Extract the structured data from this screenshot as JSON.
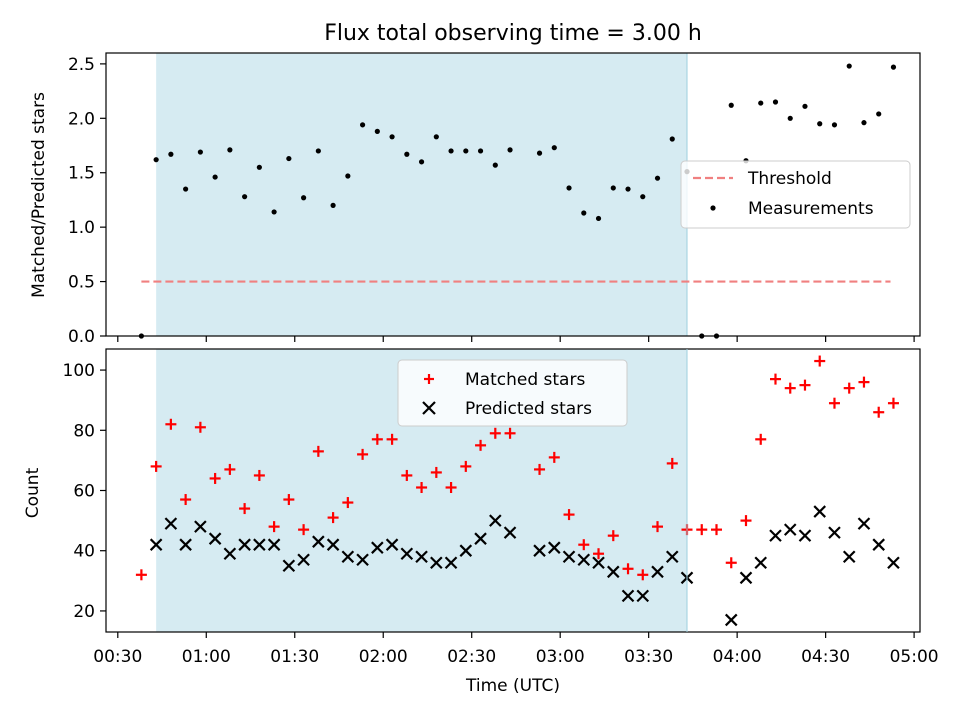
{
  "chart_data": [
    {
      "type": "scatter",
      "title": "Flux total observing time = 3.00 h",
      "ylabel": "Matched/Predicted stars",
      "xlabel": "",
      "ylim": [
        0,
        2.6
      ],
      "xlim": [
        "00:26",
        "05:02"
      ],
      "yticks": [
        0.0,
        0.5,
        1.0,
        1.5,
        2.0,
        2.5
      ],
      "ytick_labels": [
        "0.0",
        "0.5",
        "1.0",
        "1.5",
        "2.0",
        "2.5"
      ],
      "shaded_span": [
        "00:43",
        "03:43"
      ],
      "shaded_color": "#add8e6",
      "legend_position": "center-right",
      "threshold": {
        "name": "Threshold",
        "value": 0.5,
        "x_range": [
          "00:38",
          "04:52"
        ],
        "color": "#f08080"
      },
      "series": [
        {
          "name": "Measurements",
          "color": "#000000",
          "x": [
            "00:38",
            "00:43",
            "00:48",
            "00:53",
            "00:58",
            "01:03",
            "01:08",
            "01:13",
            "01:18",
            "01:23",
            "01:28",
            "01:33",
            "01:38",
            "01:43",
            "01:48",
            "01:53",
            "01:58",
            "02:03",
            "02:08",
            "02:13",
            "02:18",
            "02:23",
            "02:28",
            "02:33",
            "02:38",
            "02:43",
            "02:53",
            "02:58",
            "03:03",
            "03:08",
            "03:13",
            "03:18",
            "03:23",
            "03:28",
            "03:33",
            "03:38",
            "03:43",
            "03:48",
            "03:53",
            "03:58",
            "04:03",
            "04:08",
            "04:13",
            "04:18",
            "04:23",
            "04:28",
            "04:33",
            "04:38",
            "04:43",
            "04:48",
            "04:53"
          ],
          "y": [
            0.0,
            1.62,
            1.67,
            1.35,
            1.69,
            1.46,
            1.71,
            1.28,
            1.55,
            1.14,
            1.63,
            1.27,
            1.7,
            1.2,
            1.47,
            1.94,
            1.88,
            1.83,
            1.67,
            1.6,
            1.83,
            1.7,
            1.7,
            1.7,
            1.57,
            1.71,
            1.68,
            1.73,
            1.36,
            1.13,
            1.08,
            1.36,
            1.35,
            1.28,
            1.45,
            1.81,
            1.51,
            0.0,
            0.0,
            2.12,
            1.61,
            2.14,
            2.15,
            2.0,
            2.11,
            1.95,
            1.94,
            2.48,
            1.96,
            2.04,
            2.47
          ]
        }
      ]
    },
    {
      "type": "scatter",
      "title": "",
      "xlabel": "Time (UTC)",
      "ylabel": "Count",
      "ylim": [
        13,
        107
      ],
      "xlim": [
        "00:26",
        "05:02"
      ],
      "yticks": [
        20,
        40,
        60,
        80,
        100
      ],
      "ytick_labels": [
        "20",
        "40",
        "60",
        "80",
        "100"
      ],
      "xticks": [
        "00:30",
        "01:00",
        "01:30",
        "02:00",
        "02:30",
        "03:00",
        "03:30",
        "04:00",
        "04:30",
        "05:00"
      ],
      "shaded_span": [
        "00:43",
        "03:43"
      ],
      "shaded_color": "#add8e6",
      "legend_position": "top-center",
      "series": [
        {
          "name": "Matched stars",
          "marker": "+",
          "color": "#ff0000",
          "x": [
            "00:38",
            "00:43",
            "00:48",
            "00:53",
            "00:58",
            "01:03",
            "01:08",
            "01:13",
            "01:18",
            "01:23",
            "01:28",
            "01:33",
            "01:38",
            "01:43",
            "01:48",
            "01:53",
            "01:58",
            "02:03",
            "02:08",
            "02:13",
            "02:18",
            "02:23",
            "02:28",
            "02:33",
            "02:38",
            "02:43",
            "02:53",
            "02:58",
            "03:03",
            "03:08",
            "03:13",
            "03:18",
            "03:23",
            "03:28",
            "03:33",
            "03:38",
            "03:43",
            "03:48",
            "03:53",
            "03:58",
            "04:03",
            "04:08",
            "04:13",
            "04:18",
            "04:23",
            "04:28",
            "04:33",
            "04:38",
            "04:43",
            "04:48",
            "04:53"
          ],
          "y": [
            32,
            68,
            82,
            57,
            81,
            64,
            67,
            54,
            65,
            48,
            57,
            47,
            73,
            51,
            56,
            72,
            77,
            77,
            65,
            61,
            66,
            61,
            68,
            75,
            79,
            79,
            67,
            71,
            52,
            42,
            39,
            45,
            34,
            32,
            48,
            69,
            47,
            47,
            47,
            36,
            50,
            77,
            97,
            94,
            95,
            103,
            89,
            94,
            96,
            86,
            89
          ]
        },
        {
          "name": "Predicted stars",
          "marker": "x",
          "color": "#000000",
          "x": [
            "00:43",
            "00:48",
            "00:53",
            "00:58",
            "01:03",
            "01:08",
            "01:13",
            "01:18",
            "01:23",
            "01:28",
            "01:33",
            "01:38",
            "01:43",
            "01:48",
            "01:53",
            "01:58",
            "02:03",
            "02:08",
            "02:13",
            "02:18",
            "02:23",
            "02:28",
            "02:33",
            "02:38",
            "02:43",
            "02:53",
            "02:58",
            "03:03",
            "03:08",
            "03:13",
            "03:18",
            "03:23",
            "03:28",
            "03:33",
            "03:38",
            "03:43",
            "03:58",
            "04:03",
            "04:08",
            "04:13",
            "04:18",
            "04:23",
            "04:28",
            "04:33",
            "04:38",
            "04:43",
            "04:48",
            "04:53"
          ],
          "y": [
            42,
            49,
            42,
            48,
            44,
            39,
            42,
            42,
            42,
            35,
            37,
            43,
            42,
            38,
            37,
            41,
            42,
            39,
            38,
            36,
            36,
            40,
            44,
            50,
            46,
            40,
            41,
            38,
            37,
            36,
            33,
            25,
            25,
            33,
            38,
            31,
            17,
            31,
            36,
            45,
            47,
            45,
            53,
            46,
            38,
            49,
            42,
            36
          ]
        }
      ]
    }
  ]
}
